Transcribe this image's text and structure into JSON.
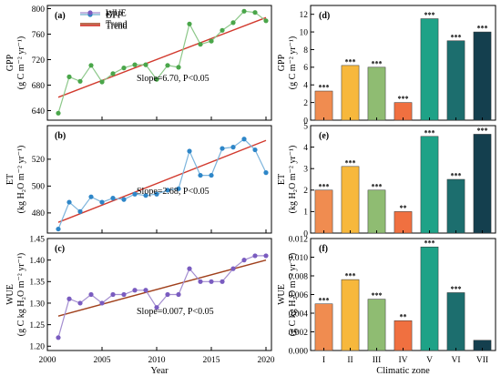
{
  "chart_data": [
    {
      "panel": "(a)",
      "type": "line",
      "ylabel": "GPP",
      "yunit": "(g C m⁻² yr⁻¹)",
      "x": [
        2001,
        2002,
        2003,
        2004,
        2005,
        2006,
        2007,
        2008,
        2009,
        2010,
        2011,
        2012,
        2013,
        2014,
        2015,
        2016,
        2017,
        2018,
        2019,
        2020
      ],
      "series": [
        {
          "name": "GPP",
          "color": "#8dc88a",
          "marker": "circle",
          "marker_color": "#4aa64a",
          "values": [
            636,
            693,
            686,
            711,
            685,
            698,
            707,
            712,
            712,
            689,
            711,
            708,
            776,
            744,
            749,
            766,
            778,
            796,
            794,
            781
          ]
        },
        {
          "name": "Trend",
          "color": "#d23a2e",
          "line": [
            [
              2001,
              661
            ],
            [
              2020,
              786
            ]
          ]
        }
      ],
      "annotation": "Slope=6.70, P<0.05",
      "xlim": [
        2000,
        2020.5
      ],
      "ylim": [
        625,
        805
      ],
      "yticks": [
        640,
        680,
        720,
        760,
        800
      ],
      "legend": "top-left"
    },
    {
      "panel": "(b)",
      "type": "line",
      "ylabel": "ET",
      "yunit": "(kg H₂O m⁻² yr⁻¹)",
      "x": [
        2001,
        2002,
        2003,
        2004,
        2005,
        2006,
        2007,
        2008,
        2009,
        2010,
        2011,
        2012,
        2013,
        2014,
        2015,
        2016,
        2017,
        2018,
        2019,
        2020
      ],
      "series": [
        {
          "name": "ET",
          "color": "#7cb4dc",
          "marker": "circle",
          "marker_color": "#2e86c8",
          "values": [
            468,
            488,
            481,
            492,
            488,
            491,
            490,
            494,
            493,
            494,
            497,
            498,
            526,
            508,
            508,
            528,
            529,
            535,
            527,
            510
          ]
        },
        {
          "name": "Trend",
          "color": "#d23a2e",
          "line": [
            [
              2001,
              473
            ],
            [
              2020,
              534
            ]
          ]
        }
      ],
      "annotation": "Slope=2.68, P<0.05",
      "xlim": [
        2000,
        2020.5
      ],
      "ylim": [
        465,
        545
      ],
      "yticks": [
        480,
        500,
        520
      ],
      "legend": "top-left"
    },
    {
      "panel": "(c)",
      "type": "line",
      "ylabel": "WUE",
      "yunit": "(g C kg H₂O m⁻² yr⁻¹)",
      "xlabel": "Year",
      "x": [
        2001,
        2002,
        2003,
        2004,
        2005,
        2006,
        2007,
        2008,
        2009,
        2010,
        2011,
        2012,
        2013,
        2014,
        2015,
        2016,
        2017,
        2018,
        2019,
        2020
      ],
      "series": [
        {
          "name": "WUE",
          "color": "#a48ed0",
          "marker": "circle",
          "marker_color": "#7a5cc0",
          "values": [
            1.22,
            1.31,
            1.3,
            1.32,
            1.3,
            1.32,
            1.32,
            1.33,
            1.33,
            1.29,
            1.32,
            1.32,
            1.38,
            1.35,
            1.35,
            1.35,
            1.38,
            1.4,
            1.41,
            1.41
          ]
        },
        {
          "name": "Trend",
          "color": "#a0401c",
          "line": [
            [
              2001,
              1.27
            ],
            [
              2020,
              1.4
            ]
          ]
        }
      ],
      "annotation": "Slope=0.007, P<0.05",
      "xlim": [
        2000,
        2020.5
      ],
      "ylim": [
        1.19,
        1.45
      ],
      "yticks": [
        1.2,
        1.25,
        1.3,
        1.35,
        1.4,
        1.45
      ],
      "xticks": [
        2000,
        2005,
        2010,
        2015,
        2020
      ],
      "legend": "top-left"
    },
    {
      "panel": "(d)",
      "type": "bar",
      "ylabel": "GPP",
      "yunit": "(g C m⁻² yr⁻¹)",
      "categories": [
        "I",
        "II",
        "III",
        "IV",
        "V",
        "VI",
        "VII"
      ],
      "values": [
        3.3,
        6.2,
        6.0,
        2.0,
        11.5,
        9.0,
        10.0
      ],
      "colors": [
        "#f08c50",
        "#f7b83c",
        "#8fbc72",
        "#f07040",
        "#1fa287",
        "#1c6e6e",
        "#143f4e"
      ],
      "labels": [
        "***",
        "***",
        "***",
        "***",
        "***",
        "***",
        "***"
      ],
      "ylim": [
        0,
        13
      ],
      "yticks": [
        0,
        2,
        4,
        6,
        8,
        10,
        12
      ]
    },
    {
      "panel": "(e)",
      "type": "bar",
      "ylabel": "ET",
      "yunit": "(kg H₂O m⁻² yr⁻¹)",
      "categories": [
        "I",
        "II",
        "III",
        "IV",
        "V",
        "VI",
        "VII"
      ],
      "values": [
        2.0,
        3.1,
        2.0,
        1.0,
        4.5,
        2.5,
        4.6
      ],
      "colors": [
        "#f08c50",
        "#f7b83c",
        "#8fbc72",
        "#f07040",
        "#1fa287",
        "#1c6e6e",
        "#143f4e"
      ],
      "labels": [
        "***",
        "***",
        "***",
        "**",
        "***",
        "***",
        "***"
      ],
      "ylim": [
        0,
        5
      ],
      "yticks": [
        0,
        1,
        2,
        3,
        4,
        5
      ]
    },
    {
      "panel": "(f)",
      "type": "bar",
      "ylabel": "WUE",
      "yunit": "(g C kg H₂O m⁻² yr⁻¹)",
      "xlabel": "Climatic zone",
      "categories": [
        "I",
        "II",
        "III",
        "IV",
        "V",
        "VI",
        "VII"
      ],
      "values": [
        0.005,
        0.0076,
        0.0055,
        0.0032,
        0.0111,
        0.0062,
        0.0011
      ],
      "colors": [
        "#f08c50",
        "#f7b83c",
        "#8fbc72",
        "#f07040",
        "#1fa287",
        "#1c6e6e",
        "#143f4e"
      ],
      "labels": [
        "***",
        "***",
        "***",
        "**",
        "***",
        "***",
        ""
      ],
      "ylim": [
        0,
        0.012
      ],
      "yticks": [
        0.0,
        0.002,
        0.004,
        0.006,
        0.008,
        0.01,
        0.012
      ],
      "ytick_labels": [
        "0.000",
        "0.002",
        "0.004",
        "0.006",
        "0.008",
        "0.010",
        "0.012"
      ]
    }
  ]
}
